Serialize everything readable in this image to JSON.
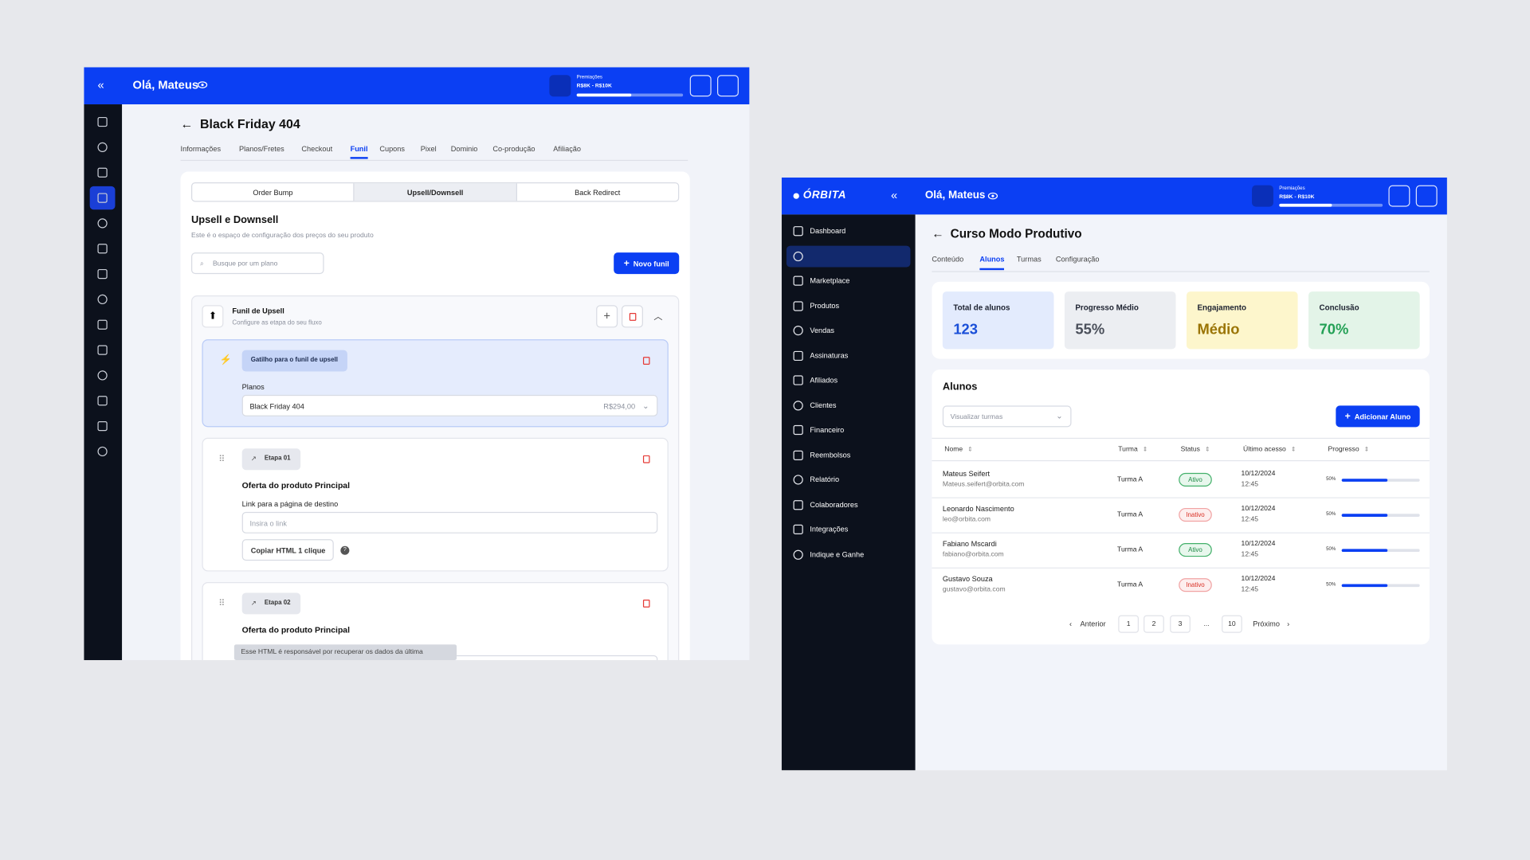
{
  "left_window": {
    "header": {
      "greeting": "Olá, Mateus",
      "award_label": "Premiações",
      "award_range": "R$8K - R$10K"
    },
    "page_title": "Black Friday 404",
    "tabs": [
      "Informações",
      "Planos/Fretes",
      "Checkout",
      "Funil",
      "Cupons",
      "Pixel",
      "Dominio",
      "Co-produção",
      "Afiliação"
    ],
    "segments": [
      "Order Bump",
      "Upsell/Downsell",
      "Back Redirect"
    ],
    "section_title": "Upsell e Downsell",
    "section_subtitle": "Este é o espaço de configuração dos preços do seu produto",
    "search_placeholder": "Busque por um plano",
    "new_button": "Novo funil",
    "funnel": {
      "title": "Funil de Upsell",
      "subtitle": "Configure as etapa do seu fluxo"
    },
    "trigger": {
      "badge": "Gatilho para o funil de upsell",
      "plans_label": "Planos",
      "plan_name": "Black Friday 404",
      "plan_price": "R$294,00"
    },
    "steps": [
      {
        "badge": "Etapa 01",
        "title": "Oferta do produto Principal",
        "link_label": "Link para a página de destino",
        "link_placeholder": "Insira o link",
        "copy_button": "Copiar HTML 1 clique"
      },
      {
        "badge": "Etapa 02",
        "title": "Oferta do produto Principal"
      }
    ],
    "tooltip": "Esse HTML é responsável por recuperar os dados da última"
  },
  "right_window": {
    "brand": "ÓRBITA",
    "header": {
      "greeting": "Olá, Mateus",
      "award_label": "Premiações",
      "award_range": "R$8K - R$10K"
    },
    "nav": [
      "Dashboard",
      null,
      "Marketplace",
      "Produtos",
      "Vendas",
      "Assinaturas",
      "Afiliados",
      "Clientes",
      "Financeiro",
      "Reembolsos",
      "Relatório",
      "Colaboradores",
      "Integrações",
      "Indique e Ganhe"
    ],
    "page_title": "Curso Modo Produtivo",
    "tabs": [
      "Conteúdo",
      "Alunos",
      "Turmas",
      "Configuração"
    ],
    "stats": [
      {
        "label": "Total de alunos",
        "value": "123"
      },
      {
        "label": "Progresso Médio",
        "value": "55%"
      },
      {
        "label": "Engajamento",
        "value": "Médio"
      },
      {
        "label": "Conclusão",
        "value": "70%"
      }
    ],
    "table_title": "Alunos",
    "select_placeholder": "Visualizar turmas",
    "add_button": "Adicionar Aluno",
    "columns": [
      "Nome",
      "Turma",
      "Status",
      "Último acesso",
      "Progresso"
    ],
    "rows": [
      {
        "name": "Mateus Seifert",
        "email": "Mateus.seifert@orbita.com",
        "class": "Turma A",
        "status": "Ativo",
        "date": "10/12/2024",
        "time": "12:45",
        "progress": "50%"
      },
      {
        "name": "Leonardo Nascimento",
        "email": "leo@orbita.com",
        "class": "Turma A",
        "status": "Inativo",
        "date": "10/12/2024",
        "time": "12:45",
        "progress": "50%"
      },
      {
        "name": "Fabiano Mscardi",
        "email": "fabiano@orbita.com",
        "class": "Turma A",
        "status": "Ativo",
        "date": "10/12/2024",
        "time": "12:45",
        "progress": "50%"
      },
      {
        "name": "Gustavo Souza",
        "email": "gustavo@orbita.com",
        "class": "Turma A",
        "status": "Inativo",
        "date": "10/12/2024",
        "time": "12:45",
        "progress": "50%"
      }
    ],
    "pagination": {
      "prev": "Anterior",
      "pages": [
        "1",
        "2",
        "3",
        "...",
        "10"
      ],
      "next": "Próximo"
    }
  }
}
